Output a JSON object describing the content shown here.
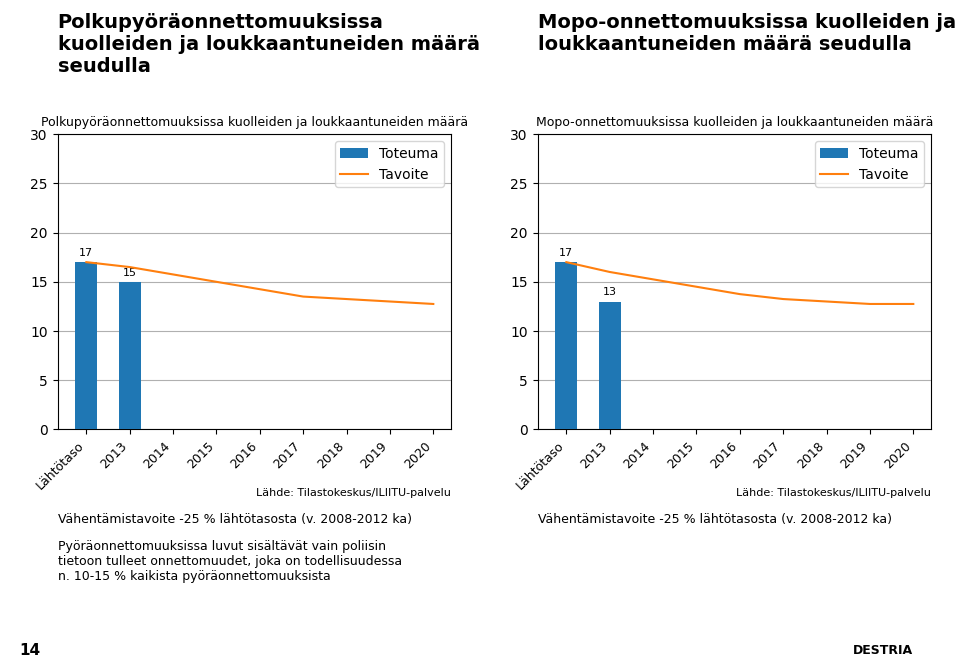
{
  "chart_data": [
    {
      "type": "bar",
      "title": "Polkupyöräonnettomuuksissa\nkuolleiden ja loukkaantuneiden määrä\nseudulla",
      "subtitle": "Polkupyöräonnettomuuksissa kuolleiden ja loukkaantuneiden määrä",
      "categories": [
        "Lähtötaso",
        "2013",
        "2014",
        "2015",
        "2016",
        "2017",
        "2018",
        "2019",
        "2020"
      ],
      "series": [
        {
          "name": "Toteuma",
          "type": "bar",
          "values": [
            17,
            15,
            null,
            null,
            null,
            null,
            null,
            null,
            null
          ],
          "data_labels": true
        },
        {
          "name": "Tavoite",
          "type": "line",
          "values": [
            17,
            16.5,
            15.75,
            15.0,
            14.25,
            13.5,
            13.25,
            13.0,
            12.75
          ]
        }
      ],
      "ylim": [
        0,
        30
      ],
      "yticks": [
        0,
        5,
        10,
        15,
        20,
        25,
        30
      ],
      "grid": true,
      "legend": "upper right",
      "annotations": [
        "Lähde: Tilastokeskus/ILIITU-palvelu",
        "Vähentämistavoite -25 % lähtötasosta (v. 2008-2012 ka)",
        "Pyöräonnettomuuksissa luvut sisältävät vain poliisin\ntietoon tulleet onnettomuudet, joka on todellisuudessa\nn. 10-15 % kaikista pyöräonnettomuuksista"
      ]
    },
    {
      "type": "bar",
      "title": "Mopo-onnettomuuksissa kuolleiden ja\nloukkaantuneiden määrä seudulla",
      "subtitle": "Mopo-onnettomuuksissa kuolleiden ja loukkaantuneiden määrä",
      "categories": [
        "Lähtötaso",
        "2013",
        "2014",
        "2015",
        "2016",
        "2017",
        "2018",
        "2019",
        "2020"
      ],
      "series": [
        {
          "name": "Toteuma",
          "type": "bar",
          "values": [
            17,
            13,
            null,
            null,
            null,
            null,
            null,
            null,
            null
          ],
          "data_labels": true
        },
        {
          "name": "Tavoite",
          "type": "line",
          "values": [
            17,
            16.0,
            15.25,
            14.5,
            13.75,
            13.25,
            13.0,
            12.75,
            12.75
          ]
        }
      ],
      "ylim": [
        0,
        30
      ],
      "yticks": [
        0,
        5,
        10,
        15,
        20,
        25,
        30
      ],
      "grid": true,
      "legend": "upper right",
      "annotations": [
        "Lähde: Tilastokeskus/ILIITU-palvelu",
        "Vähentämistavoite -25 % lähtötasosta (v. 2008-2012 ka)"
      ]
    }
  ],
  "annotations": [
    "14",
    "DESTRIA"
  ]
}
